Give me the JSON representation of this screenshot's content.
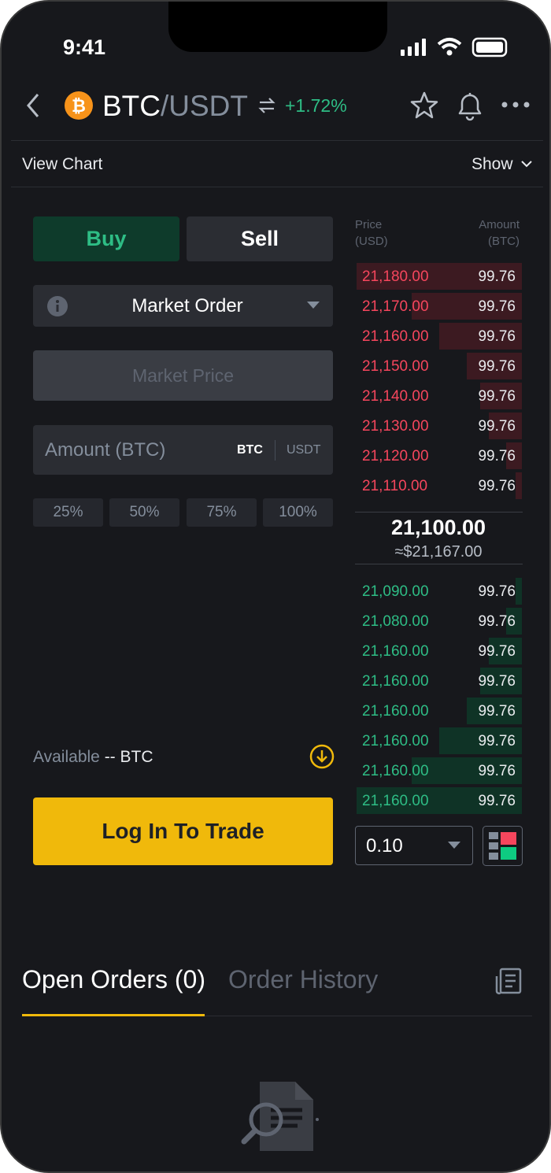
{
  "status_bar": {
    "time": "9:41"
  },
  "header": {
    "base": "BTC",
    "quote": "/USDT",
    "change": "+1.72%"
  },
  "chart_bar": {
    "view_chart": "View Chart",
    "show": "Show"
  },
  "trade_form": {
    "buy": "Buy",
    "sell": "Sell",
    "order_type": "Market Order",
    "price_placeholder": "Market Price",
    "amount_placeholder": "Amount (BTC)",
    "unit_base": "BTC",
    "unit_quote": "USDT",
    "percent_buttons": [
      "25%",
      "50%",
      "75%",
      "100%"
    ],
    "available_label": "Available",
    "available_value": "-- BTC",
    "login_button": "Log In To Trade"
  },
  "order_book": {
    "price_header": "Price",
    "price_unit": "(USD)",
    "amount_header": "Amount",
    "amount_unit": "(BTC)",
    "asks": [
      [
        "21,180.00",
        "99.76"
      ],
      [
        "21,170.00",
        "99.76"
      ],
      [
        "21,160.00",
        "99.76"
      ],
      [
        "21,150.00",
        "99.76"
      ],
      [
        "21,140.00",
        "99.76"
      ],
      [
        "21,130.00",
        "99.76"
      ],
      [
        "21,120.00",
        "99.76"
      ],
      [
        "21,110.00",
        "99.76"
      ]
    ],
    "last_price": "21,100.00",
    "last_price_fiat": "≈$21,167.00",
    "bids": [
      [
        "21,090.00",
        "99.76"
      ],
      [
        "21,080.00",
        "99.76"
      ],
      [
        "21,160.00",
        "99.76"
      ],
      [
        "21,160.00",
        "99.76"
      ],
      [
        "21,160.00",
        "99.76"
      ],
      [
        "21,160.00",
        "99.76"
      ],
      [
        "21,160.00",
        "99.76"
      ],
      [
        "21,160.00",
        "99.76"
      ]
    ],
    "precision": "0.10"
  },
  "orders_tabs": {
    "open_orders": "Open Orders (0)",
    "order_history": "Order History"
  }
}
